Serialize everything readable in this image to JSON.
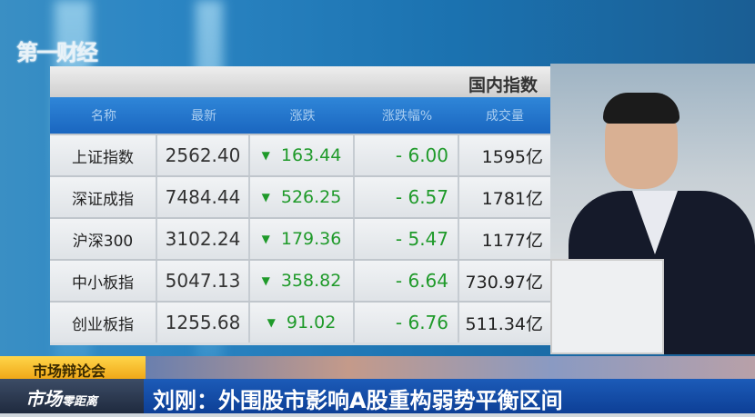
{
  "channel_logo": "第一财经",
  "panel": {
    "title": "国内指数",
    "columns": [
      "名称",
      "最新",
      "涨跌",
      "涨跌幅%",
      "成交量"
    ],
    "rows": [
      {
        "name": "上证指数",
        "last": "2562.40",
        "change": "163.44",
        "pct": "- 6.00",
        "volume": "1595亿"
      },
      {
        "name": "深证成指",
        "last": "7484.44",
        "change": "526.25",
        "pct": "- 6.57",
        "volume": "1781亿"
      },
      {
        "name": "沪深300",
        "last": "3102.24",
        "change": "179.36",
        "pct": "- 5.47",
        "volume": "1177亿"
      },
      {
        "name": "中小板指",
        "last": "5047.13",
        "change": "358.82",
        "pct": "- 6.64",
        "volume": "730.97亿"
      },
      {
        "name": "创业板指",
        "last": "1255.68",
        "change": "91.02",
        "pct": "- 6.76",
        "volume": "511.34亿"
      }
    ],
    "down_color": "#1f9a2a",
    "down_icon": "triangle-down-icon"
  },
  "segment_tag": "市场辩论会",
  "program": {
    "main": "市场",
    "sub": "零距离"
  },
  "headline": "刘刚：外围股市影响A股重构弱势平衡区间"
}
